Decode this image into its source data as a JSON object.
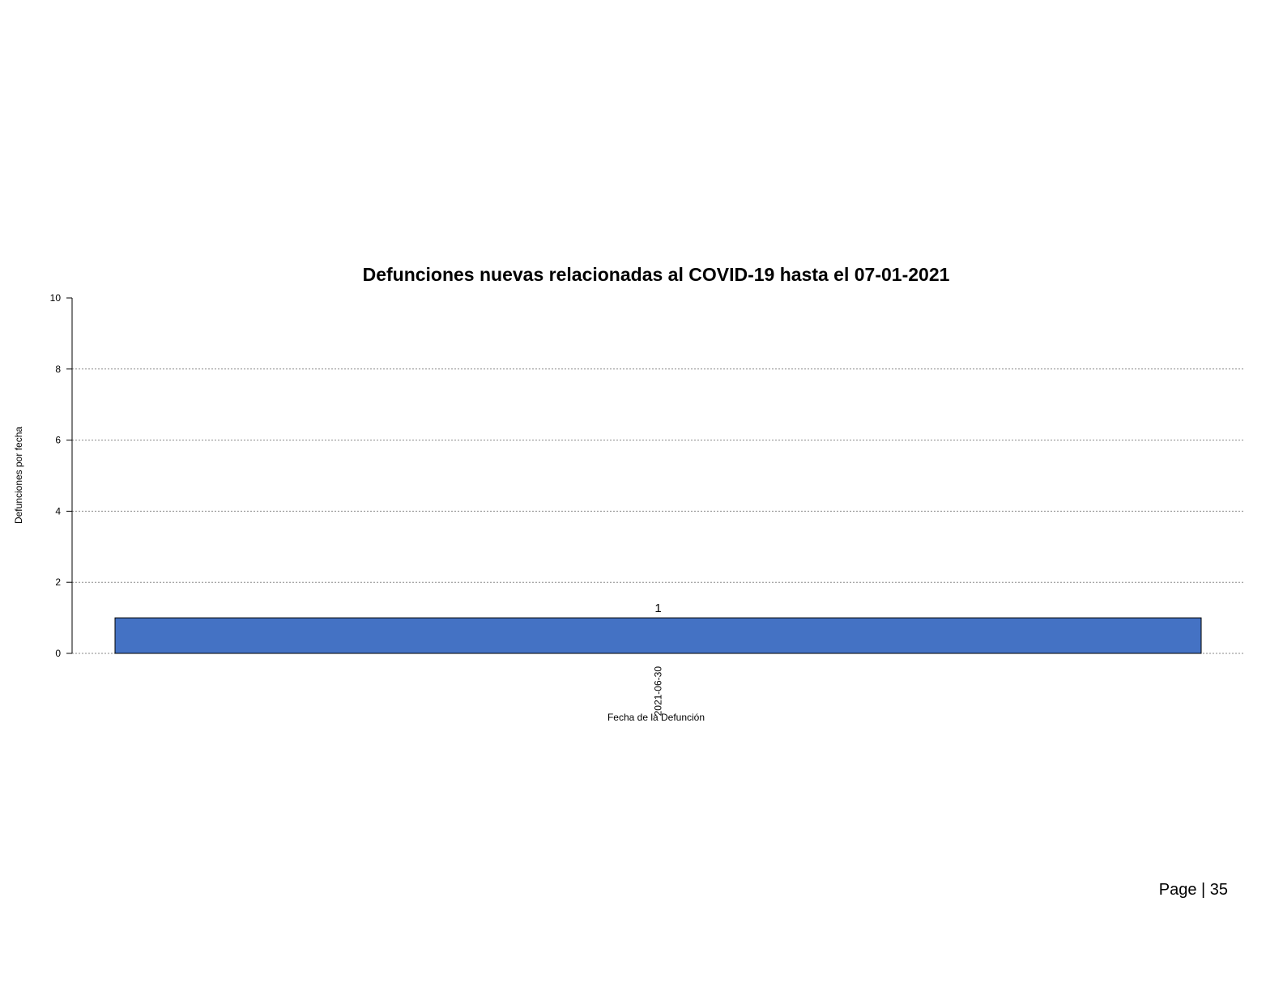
{
  "chart_data": {
    "type": "bar",
    "title": "Defunciones nuevas relacionadas al COVID-19 hasta el 07-01-2021",
    "xlabel": "Fecha de la Defunción",
    "ylabel": "Defunciones por fecha",
    "categories": [
      "2021-06-30"
    ],
    "values": [
      1
    ],
    "data_labels": [
      "1"
    ],
    "ylim": [
      0,
      10
    ],
    "yticks": [
      "0",
      "2",
      "4",
      "6",
      "8",
      "10"
    ],
    "grid": "horizontal-dotted",
    "bar_color": "#4472C4",
    "bar_border_color": "#000000"
  },
  "footer": {
    "page_label": "Page | 35"
  }
}
